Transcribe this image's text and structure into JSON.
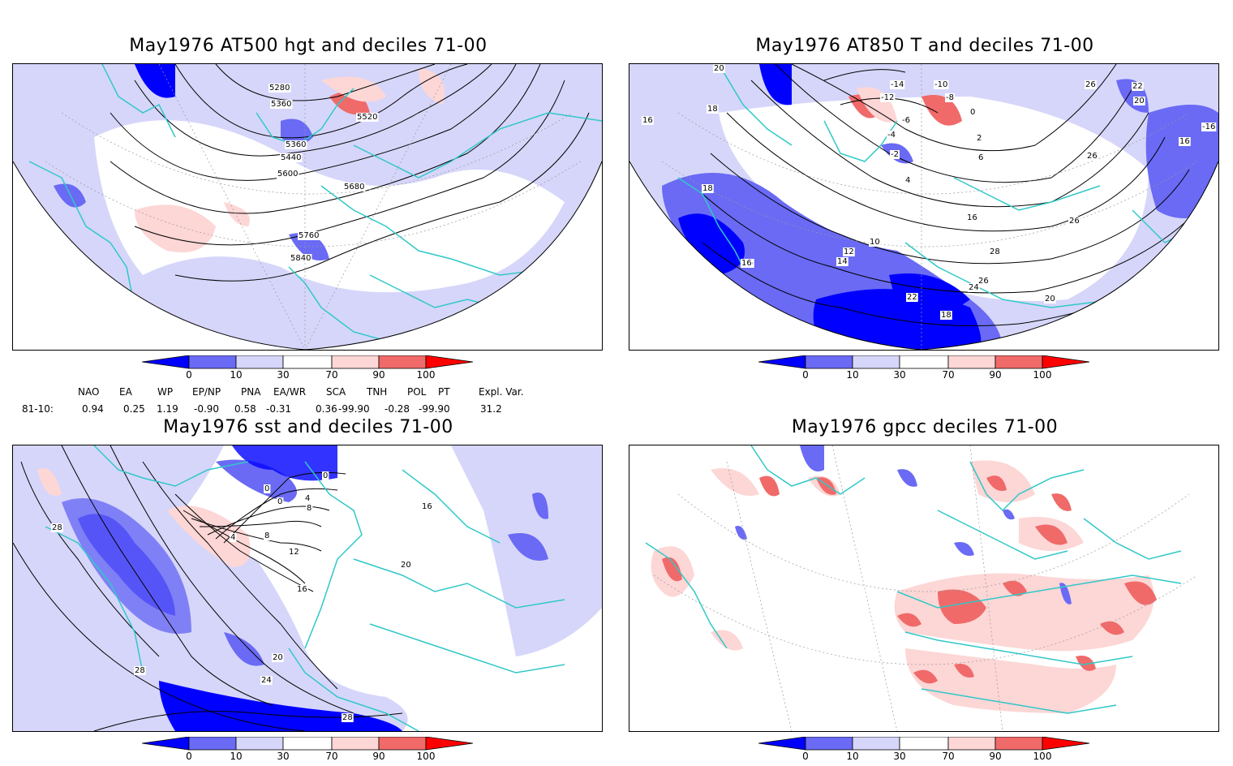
{
  "panels": [
    {
      "id": "p1",
      "title": "May1976 AT500 hgt and deciles 71-00",
      "contour_labels": [
        "5280",
        "5360",
        "5360",
        "5440",
        "5520",
        "5600",
        "5680",
        "5760",
        "5840"
      ]
    },
    {
      "id": "p2",
      "title": "May1976 AT850 T and deciles 71-00",
      "contour_labels": [
        "20",
        "18",
        "16",
        "18",
        "16",
        "-14",
        "-12",
        "-10",
        "-8",
        "-6",
        "-4",
        "-2",
        "0",
        "2",
        "6",
        "4",
        "26",
        "22",
        "20",
        "16",
        "-16",
        "26",
        "16",
        "10",
        "12",
        "14",
        "28",
        "26",
        "24",
        "22",
        "18",
        "20",
        "16",
        "26"
      ]
    },
    {
      "id": "p3",
      "title": "May1976 sst and deciles 71-00",
      "contour_labels": [
        "28",
        "0",
        "0",
        "0",
        "4",
        "8",
        "4",
        "8",
        "12",
        "16",
        "16",
        "20",
        "20",
        "24",
        "28",
        "28"
      ]
    },
    {
      "id": "p4",
      "title": "May1976 gpcc deciles 71-00",
      "contour_labels": []
    }
  ],
  "colorbar": {
    "ticks": [
      "0",
      "10",
      "30",
      "70",
      "90",
      "100"
    ],
    "colors": {
      "c0": "#0000ff",
      "c10": "#6a6af5",
      "c30": "#d6d6fa",
      "c50": "#ffffff",
      "c70": "#fdd6d6",
      "c90": "#f06a6a",
      "c100": "#ff0000"
    }
  },
  "indices": {
    "headers": [
      "NAO",
      "EA",
      "WP",
      "EP/NP",
      "PNA",
      "EA/WR",
      "SCA",
      "TNH",
      "POL",
      "PT",
      "Expl. Var."
    ],
    "row_label": "81-10:",
    "values": [
      "0.94",
      "0.25",
      "1.19",
      "-0.90",
      "0.58",
      "-0.31",
      "0.36",
      "-99.90",
      "-0.28",
      "-99.90",
      "31.2"
    ]
  },
  "map_colors": {
    "coast": "#30c8c8",
    "land_border": "#30c8c8",
    "contour": "#000000",
    "grid": "#999999"
  }
}
